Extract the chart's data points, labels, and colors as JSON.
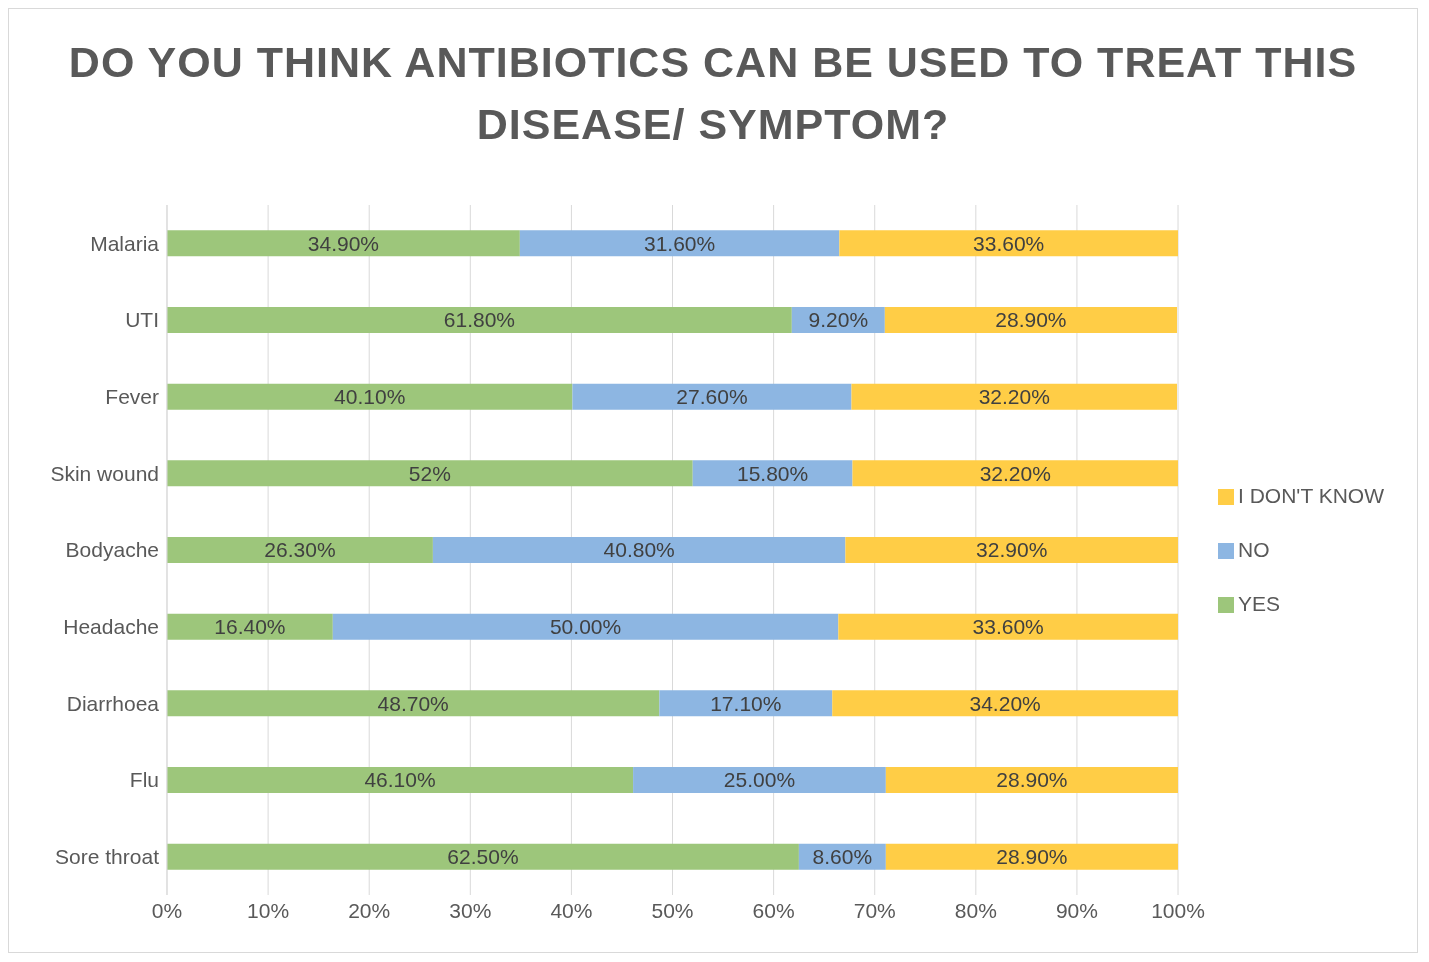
{
  "chart_data": {
    "type": "bar",
    "orientation": "horizontal",
    "stacked": true,
    "title": "DO YOU THINK ANTIBIOTICS CAN BE USED TO TREAT THIS DISEASE/ SYMPTOM?",
    "categories": [
      "Malaria",
      "UTI",
      "Fever",
      "Skin wound",
      "Bodyache",
      "Headache",
      "Diarrhoea",
      "Flu",
      "Sore throat"
    ],
    "series": [
      {
        "name": "YES",
        "color": "#9dc67b",
        "values": [
          34.9,
          61.8,
          40.1,
          52,
          26.3,
          16.4,
          48.7,
          46.1,
          62.5
        ],
        "value_labels": [
          "34.90%",
          "61.80%",
          "40.10%",
          "52%",
          "26.30%",
          "16.40%",
          "48.70%",
          "46.10%",
          "62.50%"
        ]
      },
      {
        "name": "NO",
        "color": "#8db6e2",
        "values": [
          31.6,
          9.2,
          27.6,
          15.8,
          40.8,
          50.0,
          17.1,
          25.0,
          8.6
        ],
        "value_labels": [
          "31.60%",
          "9.20%",
          "27.60%",
          "15.80%",
          "40.80%",
          "50.00%",
          "17.10%",
          "25.00%",
          "8.60%"
        ]
      },
      {
        "name": "I DON'T KNOW",
        "color": "#ffcd46",
        "values": [
          33.6,
          28.9,
          32.2,
          32.2,
          32.9,
          33.6,
          34.2,
          28.9,
          28.9
        ],
        "value_labels": [
          "33.60%",
          "28.90%",
          "32.20%",
          "32.20%",
          "32.90%",
          "33.60%",
          "34.20%",
          "28.90%",
          "28.90%"
        ]
      }
    ],
    "xlim": [
      0,
      100
    ],
    "xticks": [
      {
        "value": 0,
        "label": "0%"
      },
      {
        "value": 10,
        "label": "10%"
      },
      {
        "value": 20,
        "label": "20%"
      },
      {
        "value": 30,
        "label": "30%"
      },
      {
        "value": 40,
        "label": "40%"
      },
      {
        "value": 50,
        "label": "50%"
      },
      {
        "value": 60,
        "label": "60%"
      },
      {
        "value": 70,
        "label": "70%"
      },
      {
        "value": 80,
        "label": "80%"
      },
      {
        "value": 90,
        "label": "90%"
      },
      {
        "value": 100,
        "label": "100%"
      }
    ],
    "grid": "x",
    "legend": "right"
  }
}
